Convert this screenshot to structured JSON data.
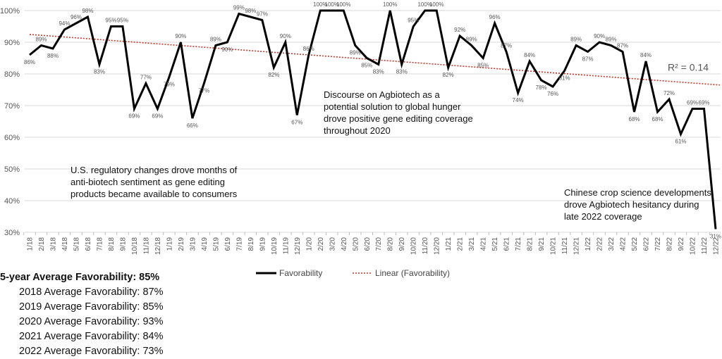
{
  "chart_data": {
    "type": "line",
    "title": "",
    "xlabel": "",
    "ylabel": "",
    "ylim": [
      30,
      100
    ],
    "yticks": [
      "30%",
      "40%",
      "50%",
      "60%",
      "70%",
      "80%",
      "90%",
      "100%"
    ],
    "grid": true,
    "legend_placement": "bottom",
    "categories": [
      "1/18",
      "2/18",
      "3/18",
      "4/18",
      "5/18",
      "6/18",
      "7/18",
      "8/18",
      "9/18",
      "10/18",
      "11/18",
      "12/18",
      "1/19",
      "2/19",
      "3/19",
      "4/19",
      "5/19",
      "6/19",
      "7/19",
      "8/19",
      "9/19",
      "10/19",
      "11/19",
      "12/19",
      "1/20",
      "2/20",
      "3/20",
      "4/20",
      "5/20",
      "6/20",
      "7/20",
      "8/20",
      "9/20",
      "10/20",
      "11/20",
      "12/20",
      "1/21",
      "2/21",
      "3/21",
      "4/21",
      "5/21",
      "6/21",
      "7/21",
      "8/21",
      "9/21",
      "10/21",
      "11/21",
      "12/21",
      "1/22",
      "2/22",
      "3/22",
      "4/22",
      "5/22",
      "6/22",
      "7/22",
      "8/22",
      "9/22",
      "10/22",
      "11/22",
      "12/22"
    ],
    "series": [
      {
        "name": "Favorability",
        "color": "#000000",
        "values": [
          86,
          89,
          88,
          94,
          96,
          98,
          83,
          95,
          95,
          69,
          77,
          69,
          79,
          90,
          66,
          77,
          89,
          90,
          99,
          98,
          97,
          82,
          90,
          67,
          86,
          100,
          100,
          100,
          89,
          85,
          83,
          100,
          83,
          95,
          100,
          100,
          82,
          92,
          89,
          85,
          96,
          87,
          74,
          84,
          78,
          76,
          81,
          89,
          87,
          90,
          89,
          87,
          68,
          84,
          68,
          72,
          61,
          69,
          69,
          31
        ]
      }
    ],
    "trendline": {
      "name": "Linear (Favorability)",
      "type": "linear",
      "color": "#c0392b",
      "r2_label": "R² = 0.14"
    },
    "annotations": [
      "U.S. regulatory changes drove months of anti-biotech sentiment as gene editing products became available to consumers",
      "Discourse on Agbiotech as a potential solution to global hunger drove positive gene editing coverage throughout 2020",
      "Chinese crop science developments drove Agbiotech hesitancy during late 2022 coverage"
    ]
  },
  "averages": {
    "overall": "5-year Average Favorability: 85%",
    "years": [
      "2018 Average Favorability: 87%",
      "2019 Average Favorability: 85%",
      "2020 Average Favorability: 93%",
      "2021 Average Favorability: 84%",
      "2022 Average Favorability: 73%"
    ]
  }
}
